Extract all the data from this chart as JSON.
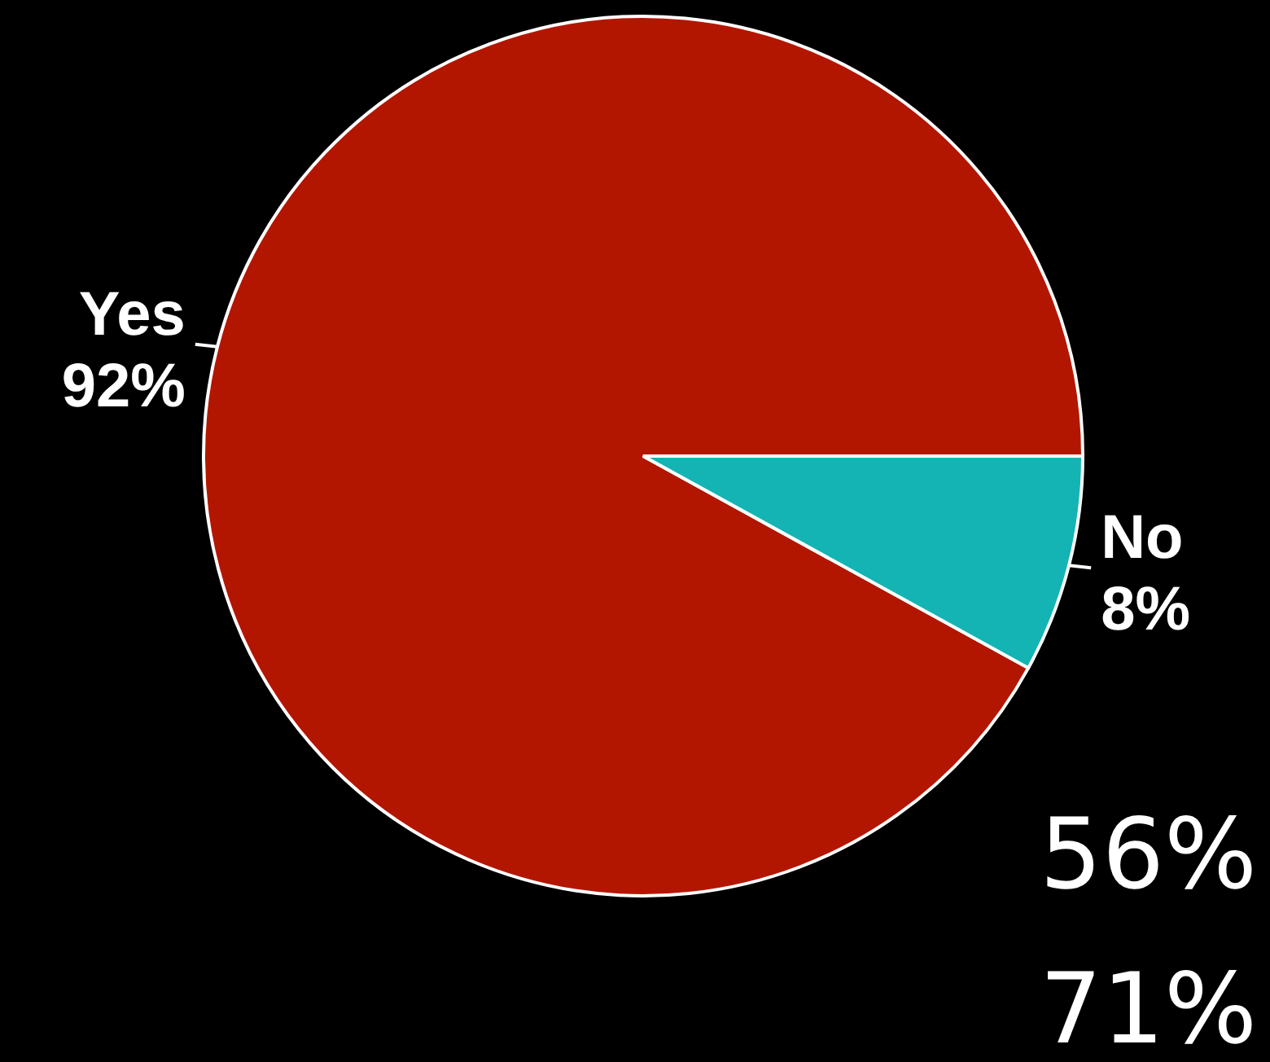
{
  "chart_data": {
    "type": "pie",
    "categories": [
      "Yes",
      "No"
    ],
    "values": [
      92,
      8
    ],
    "colors": [
      "#b31600",
      "#14b4b4"
    ],
    "value_labels": [
      "92%",
      "8%"
    ],
    "annotations": [
      "56%",
      "71%"
    ]
  }
}
